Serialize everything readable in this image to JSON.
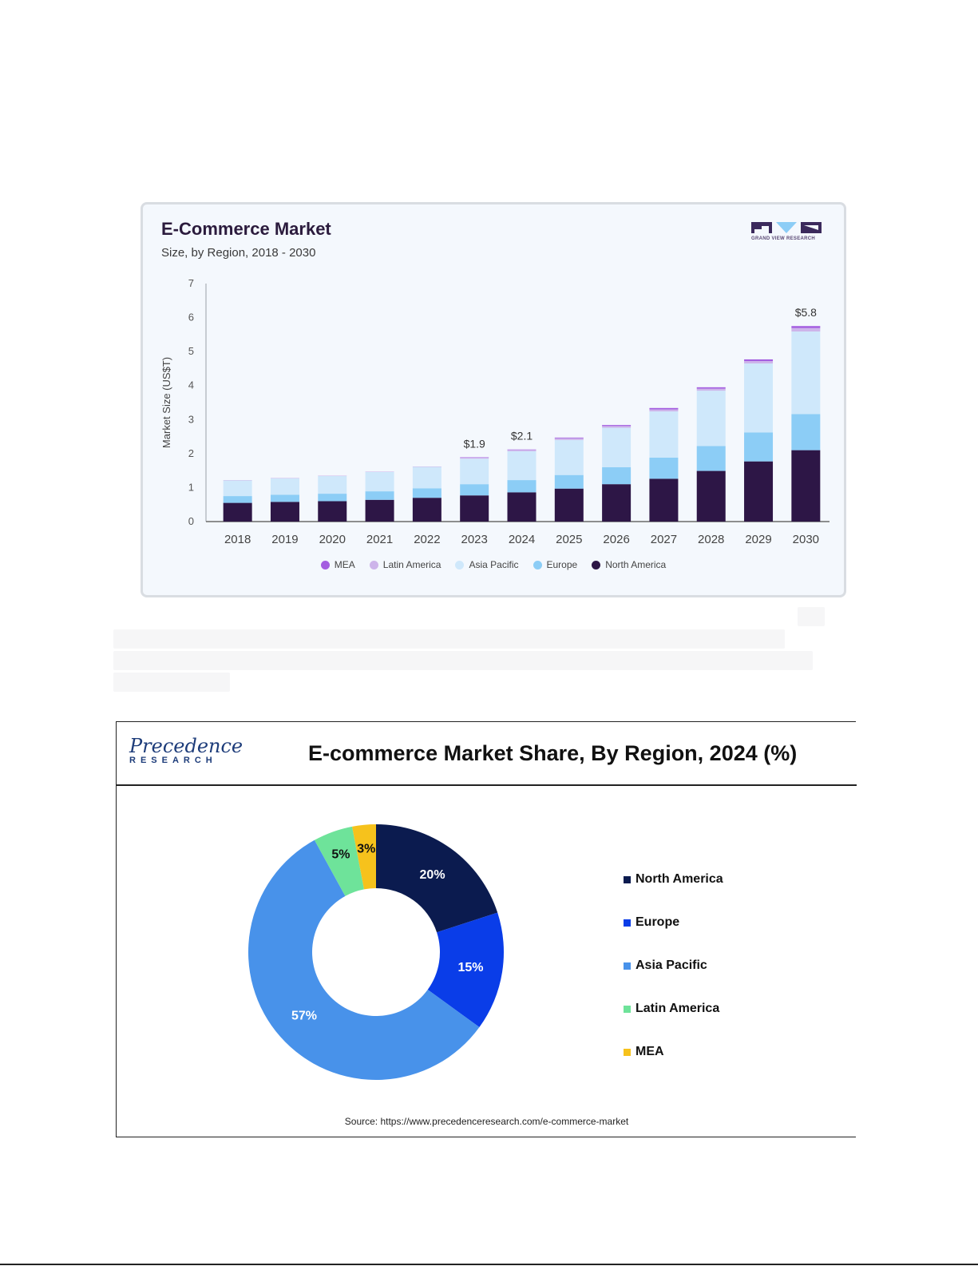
{
  "chart_data": [
    {
      "type": "bar",
      "stacked": true,
      "title": "E-Commerce Market",
      "subtitle": "Size, by Region, 2018 - 2030",
      "ylabel": "Market Size (US$T)",
      "xlabel": "",
      "ylim": [
        0,
        7
      ],
      "yticks": [
        "0",
        "1",
        "2",
        "3",
        "4",
        "5",
        "6",
        "7"
      ],
      "grid": false,
      "legend_position": "bottom",
      "categories": [
        "2018",
        "2019",
        "2020",
        "2021",
        "2022",
        "2023",
        "2024",
        "2025",
        "2026",
        "2027",
        "2028",
        "2029",
        "2030"
      ],
      "series": [
        {
          "name": "North America",
          "color": "#2d1646",
          "values": [
            0.55,
            0.58,
            0.6,
            0.64,
            0.7,
            0.77,
            0.86,
            0.97,
            1.1,
            1.26,
            1.49,
            1.77,
            2.1
          ]
        },
        {
          "name": "Europe",
          "color": "#8ccdf6",
          "values": [
            0.2,
            0.21,
            0.22,
            0.25,
            0.28,
            0.33,
            0.36,
            0.4,
            0.5,
            0.62,
            0.73,
            0.85,
            1.06
          ]
        },
        {
          "name": "Asia Pacific",
          "color": "#cfe8fb",
          "values": [
            0.46,
            0.48,
            0.52,
            0.57,
            0.63,
            0.75,
            0.85,
            1.03,
            1.16,
            1.36,
            1.63,
            2.03,
            2.43
          ]
        },
        {
          "name": "Latin America",
          "color": "#cdb4ea",
          "values": [
            0.01,
            0.01,
            0.01,
            0.01,
            0.01,
            0.03,
            0.04,
            0.05,
            0.05,
            0.06,
            0.06,
            0.07,
            0.1
          ]
        },
        {
          "name": "MEA",
          "color": "#a45ee0",
          "values": [
            0.0,
            0.0,
            0.0,
            0.0,
            0.0,
            0.01,
            0.01,
            0.02,
            0.03,
            0.04,
            0.04,
            0.05,
            0.06
          ]
        }
      ],
      "legend_order": [
        "MEA",
        "Latin America",
        "Asia Pacific",
        "Europe",
        "North America"
      ],
      "annotations": [
        {
          "category": "2023",
          "text": "$1.9"
        },
        {
          "category": "2024",
          "text": "$2.1"
        },
        {
          "category": "2030",
          "text": "$5.8"
        }
      ],
      "brand": "GRAND VIEW RESEARCH"
    },
    {
      "type": "pie",
      "donut": true,
      "title": "E-commerce Market Share, By Region, 2024 (%)",
      "legend_position": "right",
      "slices": [
        {
          "label": "North America",
          "value": 20,
          "text": "20%",
          "color": "#0b1b4f",
          "label_color": "#ffffff"
        },
        {
          "label": "Europe",
          "value": 15,
          "text": "15%",
          "color": "#0a3de8",
          "label_color": "#ffffff"
        },
        {
          "label": "Asia Pacific",
          "value": 57,
          "text": "57%",
          "color": "#4892ea",
          "label_color": "#ffffff"
        },
        {
          "label": "Latin America",
          "value": 5,
          "text": "5%",
          "color": "#6ee39a",
          "label_color": "#111111"
        },
        {
          "label": "MEA",
          "value": 3,
          "text": "3%",
          "color": "#f6c21c",
          "label_color": "#111111"
        }
      ],
      "brand_word": "Precedence",
      "brand_sub": "RESEARCH",
      "source": "Source: https://www.precedenceresearch.com/e-commerce-market"
    }
  ]
}
